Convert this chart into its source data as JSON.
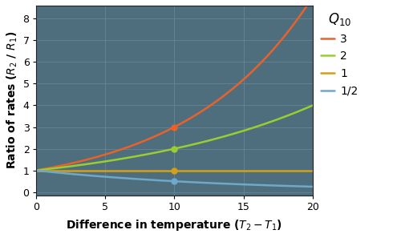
{
  "xlabel": "Difference in temperature ($T_2 - T_1$)",
  "ylabel": "Ratio of rates ($R_2$ / $R_1$)",
  "xlim": [
    0,
    20
  ],
  "ylim": [
    -0.15,
    8.6
  ],
  "yticks": [
    0,
    1,
    2,
    3,
    4,
    5,
    6,
    7,
    8
  ],
  "xticks": [
    0,
    5,
    10,
    15,
    20
  ],
  "plot_bg": "#4e6e7e",
  "figure_bg": "#ffffff",
  "grid_color": "#6a8a9a",
  "lines": [
    {
      "q10": 3,
      "color": "#e8622a",
      "label": "3",
      "marker_x": 10,
      "marker_y": 3.0
    },
    {
      "q10": 2,
      "color": "#9acd32",
      "label": "2",
      "marker_x": 10,
      "marker_y": 2.0
    },
    {
      "q10": 1,
      "color": "#d4a017",
      "label": "1",
      "marker_x": 10,
      "marker_y": 1.0
    },
    {
      "q10": 0.5,
      "color": "#6fa8c8",
      "label": "1/2",
      "marker_x": 10,
      "marker_y": 0.5
    }
  ],
  "legend_title": "$Q_{10}$",
  "legend_title_fontsize": 12,
  "legend_fontsize": 10,
  "axis_label_fontsize": 10,
  "tick_fontsize": 9,
  "line_width": 1.8,
  "marker_size": 5
}
